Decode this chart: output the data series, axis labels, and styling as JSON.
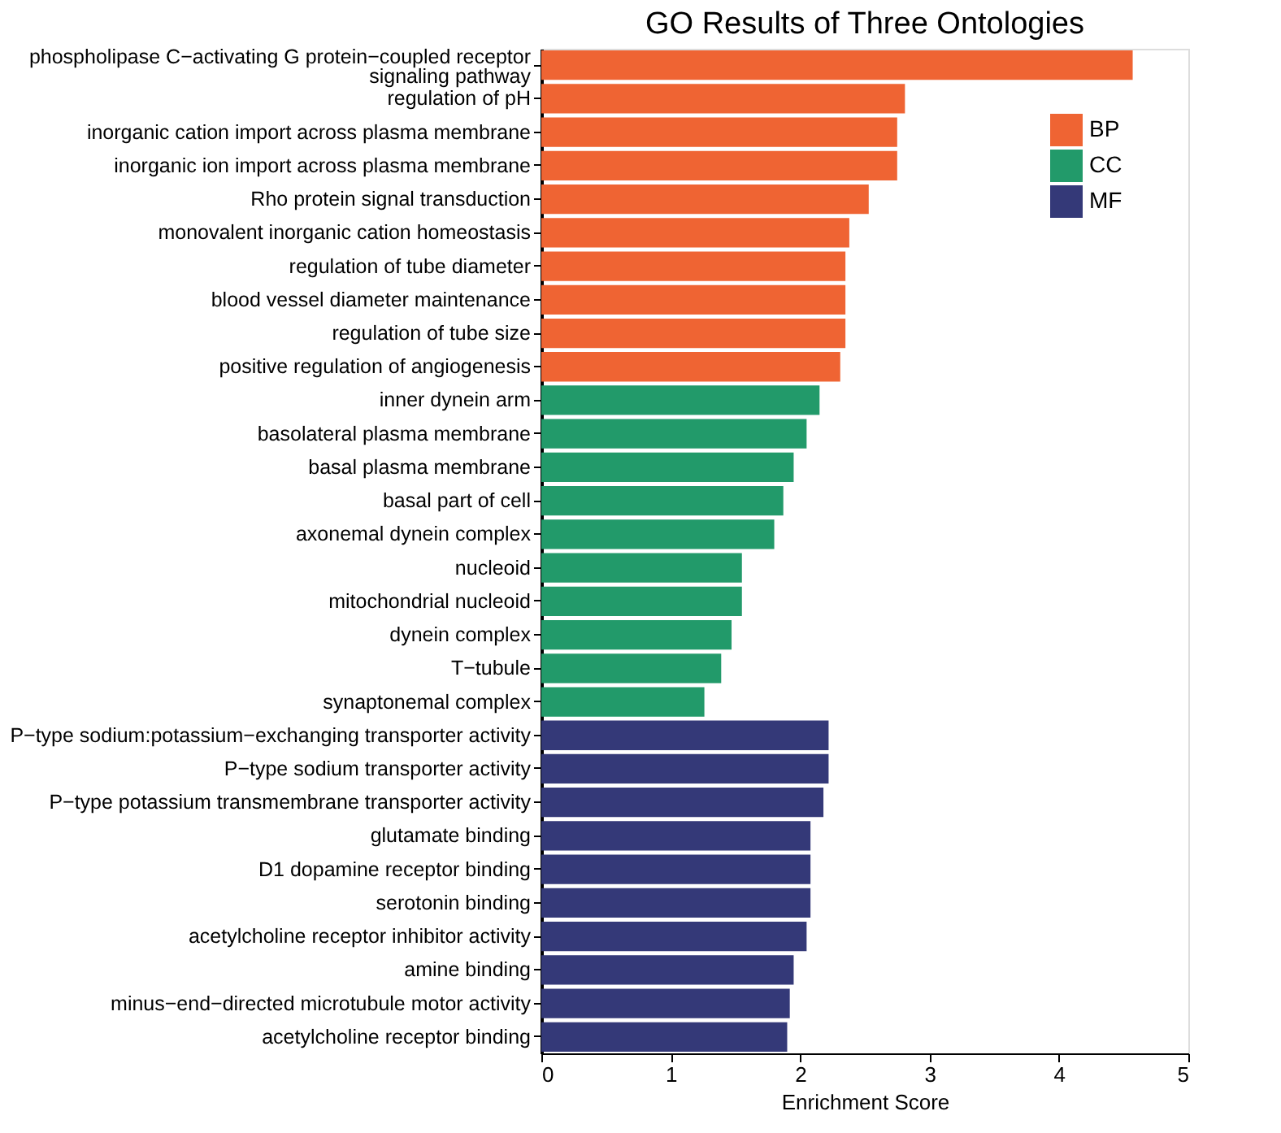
{
  "chart_data": {
    "type": "bar",
    "orientation": "horizontal",
    "title": "GO Results of Three Ontologies",
    "xlabel": "Enrichment Score",
    "categories": [
      "phospholipase C−activating G protein−coupled receptor signaling pathway",
      "regulation of pH",
      "inorganic cation import across plasma membrane",
      "inorganic ion import across plasma membrane",
      "Rho protein signal transduction",
      "monovalent inorganic cation homeostasis",
      "regulation of tube diameter",
      "blood vessel diameter maintenance",
      "regulation of tube size",
      "positive regulation of angiogenesis",
      "inner dynein arm",
      "basolateral plasma membrane",
      "basal plasma membrane",
      "basal part of cell",
      "axonemal dynein complex",
      "nucleoid",
      "mitochondrial nucleoid",
      "dynein complex",
      "T−tubule",
      "synaptonemal complex",
      "P−type sodium:potassium−exchanging transporter activity",
      "P−type sodium transporter activity",
      "P−type potassium transmembrane transporter activity",
      "glutamate binding",
      "D1 dopamine receptor binding",
      "serotonin binding",
      "acetylcholine receptor inhibitor activity",
      "amine binding",
      "minus−end−directed microtubule motor activity",
      "acetylcholine receptor binding"
    ],
    "series": [
      {
        "name": "BP",
        "color": "#ef6433",
        "values": [
          4.57,
          2.81,
          2.75,
          2.75,
          2.53,
          2.38,
          2.35,
          2.35,
          2.35,
          2.31,
          null,
          null,
          null,
          null,
          null,
          null,
          null,
          null,
          null,
          null,
          null,
          null,
          null,
          null,
          null,
          null,
          null,
          null,
          null,
          null
        ]
      },
      {
        "name": "CC",
        "color": "#229a6a",
        "values": [
          null,
          null,
          null,
          null,
          null,
          null,
          null,
          null,
          null,
          null,
          2.15,
          2.05,
          1.95,
          1.87,
          1.8,
          1.55,
          1.55,
          1.47,
          1.39,
          1.26,
          null,
          null,
          null,
          null,
          null,
          null,
          null,
          null,
          null,
          null
        ]
      },
      {
        "name": "MF",
        "color": "#343978",
        "values": [
          null,
          null,
          null,
          null,
          null,
          null,
          null,
          null,
          null,
          null,
          null,
          null,
          null,
          null,
          null,
          null,
          null,
          null,
          null,
          null,
          2.22,
          2.22,
          2.18,
          2.08,
          2.08,
          2.08,
          2.05,
          1.95,
          1.92,
          1.9
        ]
      }
    ],
    "xlim": [
      0,
      5
    ],
    "xticks": [
      0,
      1,
      2,
      3,
      4,
      5
    ],
    "grid": false,
    "legend": "top right"
  }
}
